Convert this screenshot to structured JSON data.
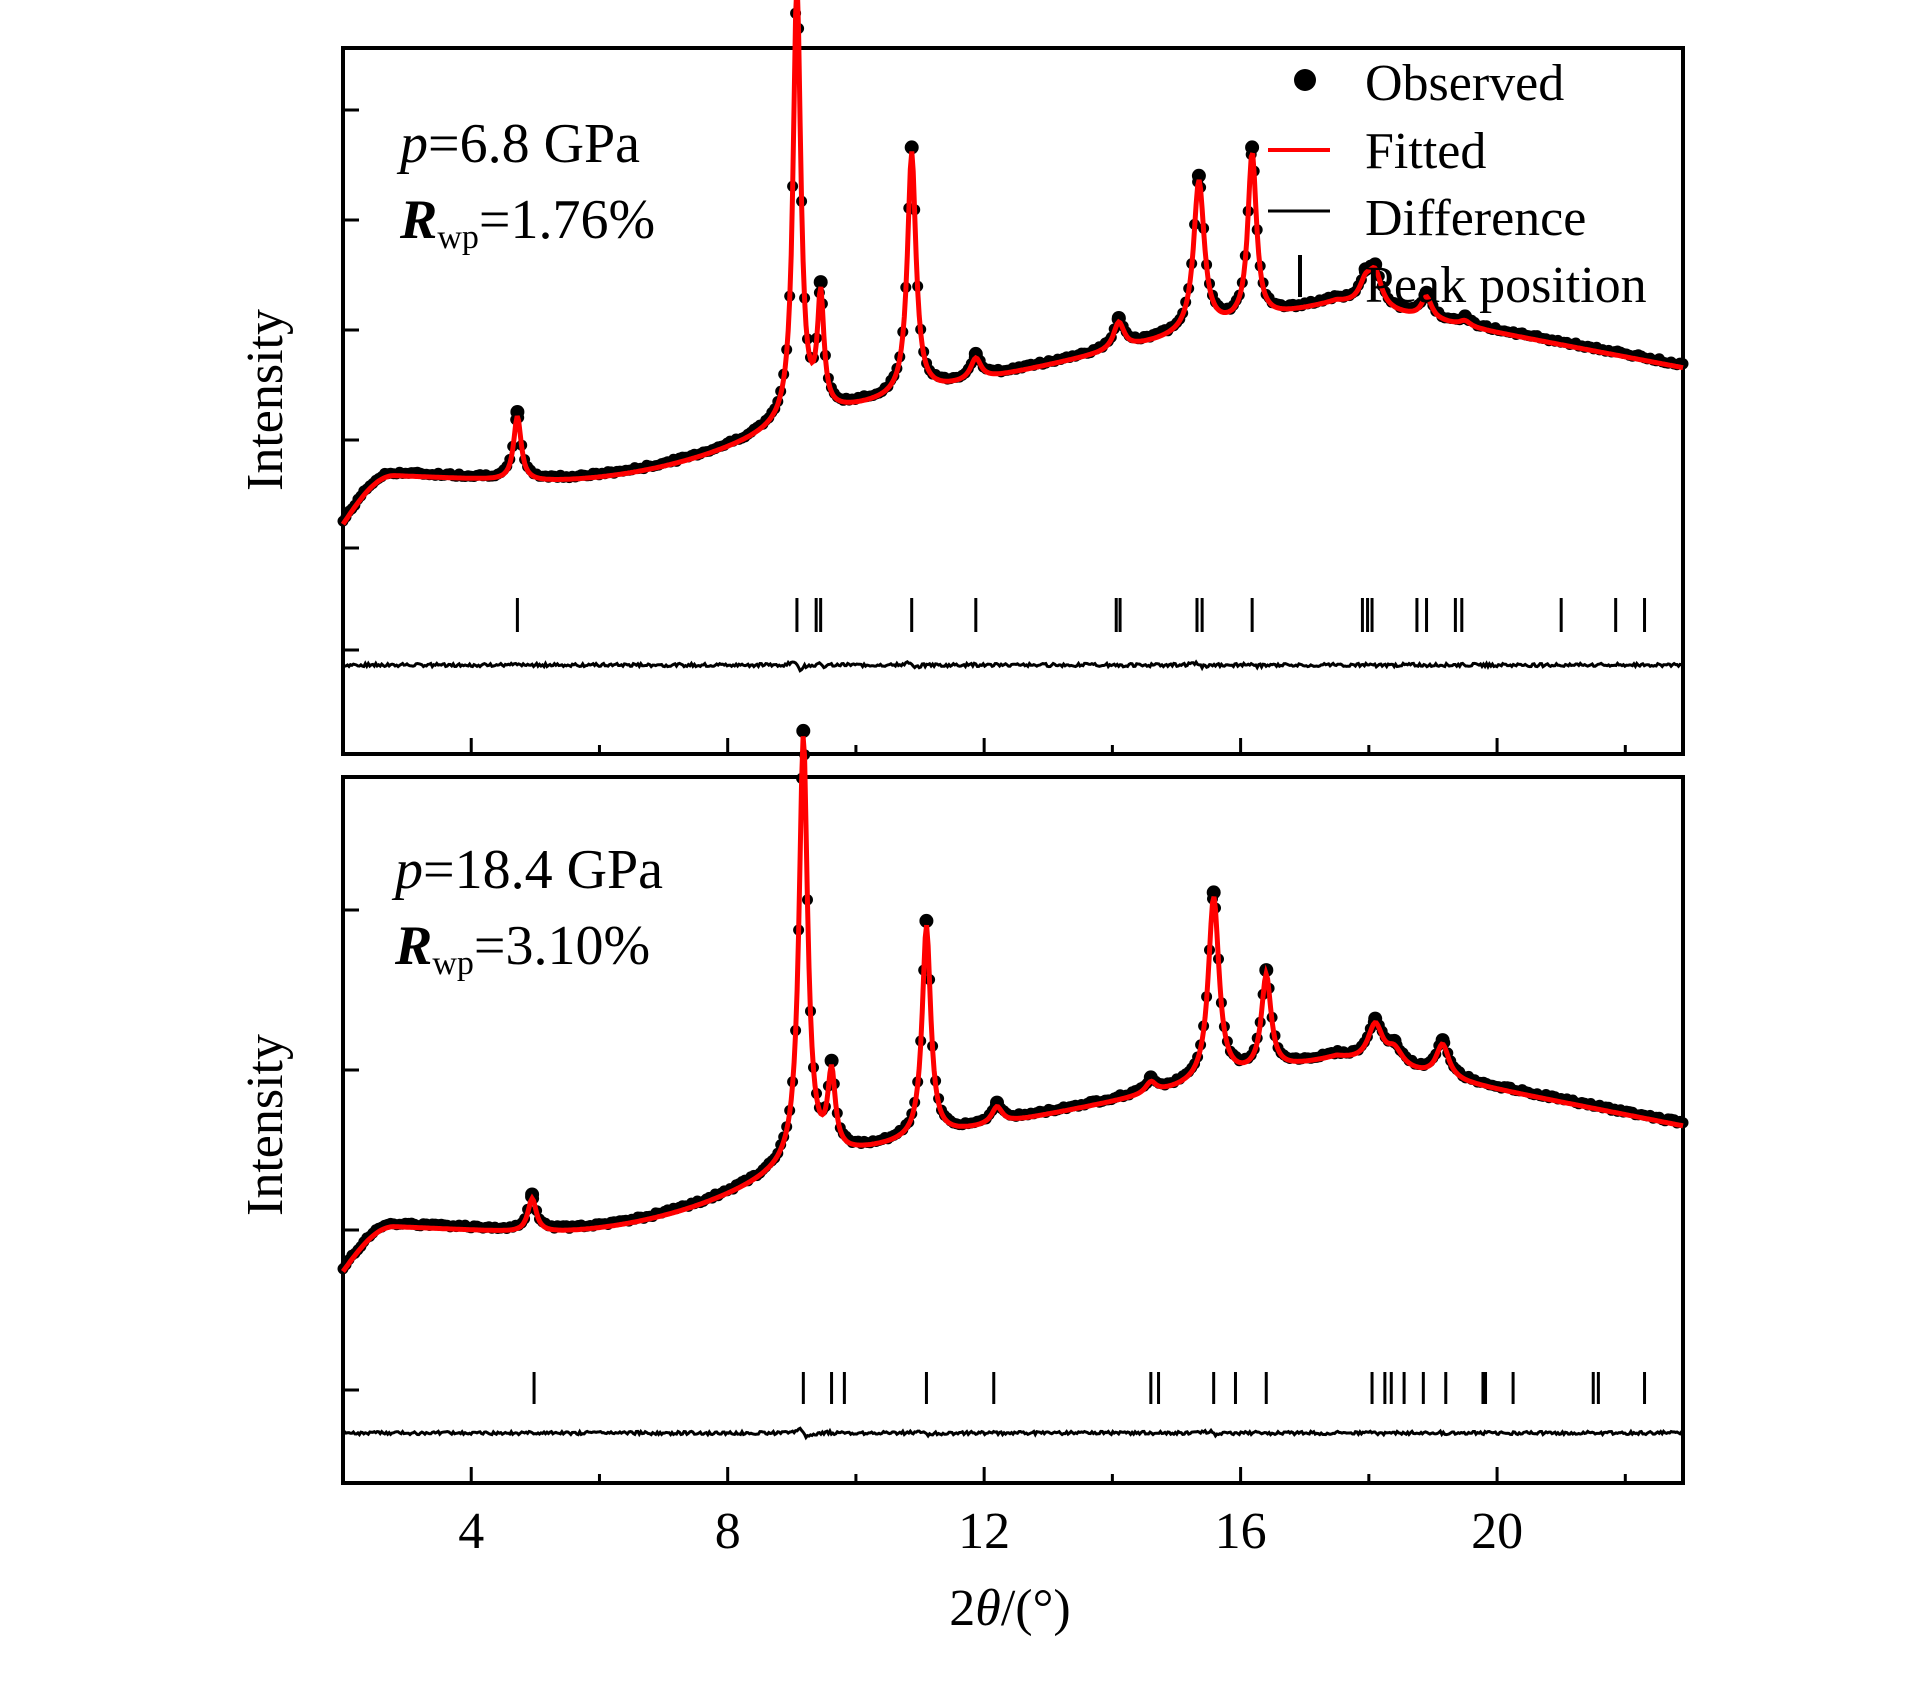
{
  "chart_data": [
    {
      "type": "line",
      "panel": "top",
      "annotation": {
        "pressure_var": "p",
        "pressure_value": "=6.8 GPa",
        "r_var": "R",
        "r_sub": "wp",
        "r_value": "=1.76%"
      },
      "ylabel": "Intensity",
      "xlabel": "2θ/(°)",
      "xlim": [
        2,
        22.9
      ],
      "ylim": [
        0,
        100
      ],
      "grid": false,
      "background": {
        "start": 14,
        "plateau_x": 2.8,
        "plateau": 23,
        "rise_end_x": 9.0,
        "rise_end": 33,
        "mid_x": 17.5,
        "mid": 55,
        "end": 43
      },
      "peaks": [
        {
          "x": 4.72,
          "height": 12,
          "width": 0.07
        },
        {
          "x": 9.08,
          "height": 81,
          "width": 0.07
        },
        {
          "x": 9.45,
          "height": 21,
          "width": 0.06
        },
        {
          "x": 10.87,
          "height": 45,
          "width": 0.08
        },
        {
          "x": 11.87,
          "height": 4,
          "width": 0.1
        },
        {
          "x": 14.1,
          "height": 5,
          "width": 0.1
        },
        {
          "x": 15.35,
          "height": 28,
          "width": 0.1
        },
        {
          "x": 16.18,
          "height": 31,
          "width": 0.08
        },
        {
          "x": 17.95,
          "height": 4,
          "width": 0.12
        },
        {
          "x": 18.1,
          "height": 6,
          "width": 0.12
        },
        {
          "x": 18.9,
          "height": 4,
          "width": 0.1
        },
        {
          "x": 19.5,
          "height": 1,
          "width": 0.1
        }
      ],
      "peak_positions": [
        4.72,
        9.08,
        9.38,
        9.45,
        10.87,
        11.87,
        14.06,
        14.12,
        15.32,
        15.4,
        16.18,
        17.9,
        17.98,
        18.05,
        18.75,
        18.9,
        19.35,
        19.45,
        21.0,
        21.85,
        22.3
      ],
      "series": [
        {
          "name": "Observed",
          "style": "dots",
          "color": "#000000"
        },
        {
          "name": "Fitted",
          "style": "line",
          "color": "#ff0000"
        },
        {
          "name": "Difference",
          "style": "line",
          "color": "#000000"
        },
        {
          "name": "Peak position",
          "style": "ticks",
          "color": "#000000"
        }
      ]
    },
    {
      "type": "line",
      "panel": "bottom",
      "annotation": {
        "pressure_var": "p",
        "pressure_value": "=18.4 GPa",
        "r_var": "R",
        "r_sub": "wp",
        "r_value": "=3.10%"
      },
      "ylabel": "Intensity",
      "xlabel": "2θ/(°)",
      "xlim": [
        2,
        22.9
      ],
      "ylim": [
        0,
        100
      ],
      "grid": false,
      "background": {
        "start": 14,
        "plateau_x": 2.8,
        "plateau": 22,
        "rise_end_x": 9.0,
        "rise_end": 33,
        "mid_x": 17.5,
        "mid": 52,
        "end": 40
      },
      "peaks": [
        {
          "x": 4.95,
          "height": 6,
          "width": 0.08
        },
        {
          "x": 9.18,
          "height": 76,
          "width": 0.08
        },
        {
          "x": 9.62,
          "height": 14,
          "width": 0.07
        },
        {
          "x": 11.1,
          "height": 38,
          "width": 0.08
        },
        {
          "x": 12.2,
          "height": 3,
          "width": 0.1
        },
        {
          "x": 14.6,
          "height": 2,
          "width": 0.1
        },
        {
          "x": 15.58,
          "height": 33,
          "width": 0.1
        },
        {
          "x": 16.4,
          "height": 17,
          "width": 0.09
        },
        {
          "x": 18.1,
          "height": 7,
          "width": 0.14
        },
        {
          "x": 18.4,
          "height": 3,
          "width": 0.15
        },
        {
          "x": 19.15,
          "height": 6,
          "width": 0.12
        }
      ],
      "peak_positions": [
        4.98,
        9.18,
        9.62,
        9.82,
        11.1,
        12.15,
        14.6,
        14.72,
        15.58,
        15.92,
        16.4,
        18.05,
        18.25,
        18.35,
        18.55,
        18.85,
        19.2,
        19.78,
        19.82,
        20.25,
        21.5,
        21.58,
        22.3
      ],
      "series": [
        {
          "name": "Observed",
          "style": "dots",
          "color": "#000000"
        },
        {
          "name": "Fitted",
          "style": "line",
          "color": "#ff0000"
        },
        {
          "name": "Difference",
          "style": "line",
          "color": "#000000"
        },
        {
          "name": "Peak position",
          "style": "ticks",
          "color": "#000000"
        }
      ]
    }
  ],
  "legend": {
    "placement": "top-right",
    "items": [
      {
        "label": "Observed",
        "symbol": "dot"
      },
      {
        "label": "Fitted",
        "symbol": "red-line"
      },
      {
        "label": "Difference",
        "symbol": "black-line"
      },
      {
        "label": "Peak position",
        "symbol": "vertical-tick"
      }
    ]
  },
  "x_axis": {
    "ticks": [
      4,
      6,
      8,
      10,
      12,
      14,
      16,
      18,
      20,
      22
    ],
    "labeled_ticks": [
      "4",
      "8",
      "12",
      "16",
      "20"
    ],
    "label": "2θ/(°)",
    "label_num": "2",
    "label_var": "θ",
    "label_unit": "/(°)"
  },
  "colors": {
    "observed": "#000000",
    "fitted": "#ff0000",
    "difference": "#000000",
    "axis": "#000000"
  }
}
